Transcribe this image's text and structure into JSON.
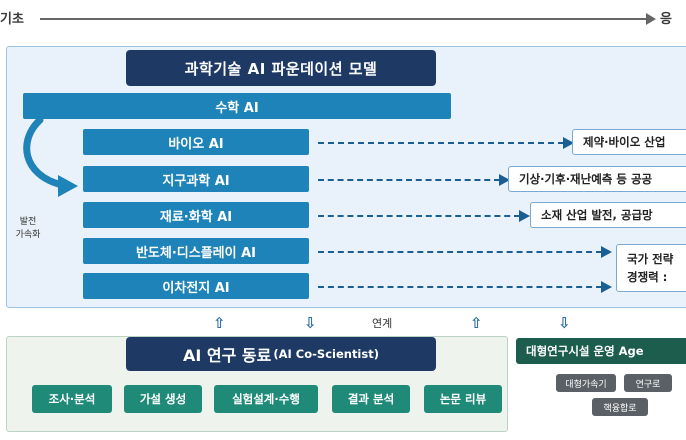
{
  "axis": {
    "start_label": "기초",
    "end_label": "응"
  },
  "foundation": {
    "title": "과학기술 AI 파운데이션 모델",
    "base_model": "수학 AI",
    "acceleration_label_1": "발전",
    "acceleration_label_2": "가속화",
    "domains": [
      {
        "label": "바이오 AI",
        "outcome": "제약·바이오 산업"
      },
      {
        "label": "지구과학 AI",
        "outcome": "기상·기후·재난예측 등 공공"
      },
      {
        "label": "재료·화학 AI",
        "outcome": "소재 산업 발전, 공급망"
      },
      {
        "label": "반도체·디스플레이 AI",
        "outcome_line1": "국가 전략",
        "outcome_line2": "경쟁력 :"
      },
      {
        "label": "이차전지 AI"
      }
    ]
  },
  "link": {
    "label": "연계",
    "up_arrow": "⇧",
    "down_arrow": "⇩"
  },
  "co_scientist": {
    "title": "AI 연구 동료",
    "subtitle": "(AI Co-Scientist)",
    "tasks": [
      "조사·분석",
      "가설 생성",
      "실험설계·수행",
      "결과 분석",
      "논문 리뷰"
    ]
  },
  "facility": {
    "title": "대형연구시설 운영 Age",
    "chips": [
      "대형가속기",
      "연구로",
      "핵융합로"
    ]
  },
  "colors": {
    "navy": "#1e3a64",
    "domain_blue": "#1d83b8",
    "task_teal": "#1f8a78",
    "facility_green": "#1d5d4d",
    "panel_bg": "#e9f2fa"
  }
}
